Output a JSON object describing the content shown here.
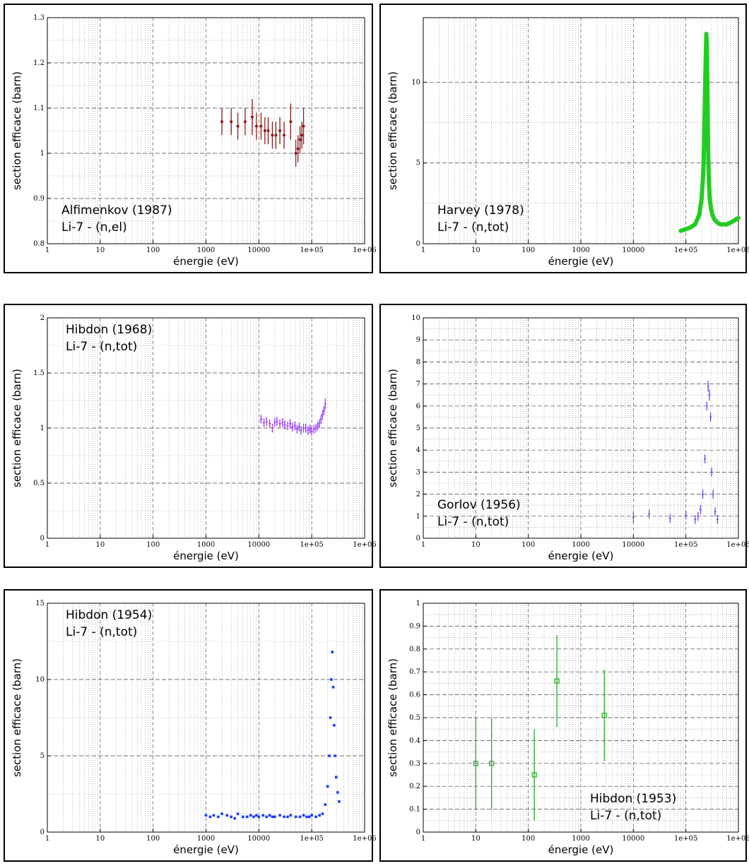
{
  "chart_data": [
    {
      "type": "scatter",
      "title": "",
      "xlabel": "énergie (eV)",
      "ylabel": "section efficace (barn)",
      "xscale": "log",
      "xlim": [
        1,
        1000000
      ],
      "ylim": [
        0.8,
        1.3
      ],
      "xticks": [
        "1",
        "10",
        "100",
        "1000",
        "10000",
        "1e+05",
        "1e+06"
      ],
      "yticks": [
        "0.8",
        "0.9",
        "1",
        "1.1",
        "1.2",
        "1.3"
      ],
      "annotation": [
        "Alfimenkov (1987)",
        "Li-7   -   (n,el)"
      ],
      "annotation_position": "bottom-left",
      "grid": true,
      "color": "#8b1a1a",
      "marker": "circle",
      "series": [
        {
          "x": [
            2000,
            3000,
            4000,
            5500,
            7500,
            9000,
            11000,
            13000,
            15000,
            18000,
            21000,
            25000,
            30000,
            40000,
            50000,
            55000,
            60000,
            65000,
            70000
          ],
          "y": [
            1.07,
            1.07,
            1.06,
            1.07,
            1.08,
            1.06,
            1.06,
            1.05,
            1.05,
            1.04,
            1.04,
            1.05,
            1.04,
            1.07,
            1.0,
            1.01,
            1.03,
            1.04,
            1.06
          ],
          "err": [
            0.03,
            0.03,
            0.03,
            0.03,
            0.04,
            0.03,
            0.03,
            0.03,
            0.03,
            0.03,
            0.03,
            0.03,
            0.03,
            0.04,
            0.03,
            0.03,
            0.03,
            0.03,
            0.04
          ]
        }
      ]
    },
    {
      "type": "scatter",
      "title": "",
      "xlabel": "énergie (eV)",
      "ylabel": "section efficace (barn)",
      "xscale": "log",
      "xlim": [
        1,
        1000000
      ],
      "ylim": [
        0,
        14
      ],
      "xticks": [
        "1",
        "10",
        "100",
        "1000",
        "10000",
        "1e+05",
        "1e+06"
      ],
      "yticks": [
        "0",
        "5",
        "10"
      ],
      "yticks_values": [
        0,
        5,
        10
      ],
      "annotation": [
        "Harvey (1978)",
        "Li-7   -   (n,tot)"
      ],
      "annotation_position": "bottom-left",
      "grid": true,
      "color": "#22cc22",
      "marker": "dense-line",
      "series": [
        {
          "x": [
            80000,
            100000,
            120000,
            150000,
            180000,
            200000,
            215000,
            225000,
            235000,
            245000,
            252000,
            258000,
            263000,
            268000,
            275000,
            285000,
            300000,
            320000,
            350000,
            400000,
            450000,
            500000,
            600000,
            700000,
            800000,
            900000,
            1000000
          ],
          "y": [
            0.8,
            0.9,
            1.0,
            1.2,
            1.8,
            2.8,
            4.5,
            7.0,
            10.5,
            13.0,
            12.0,
            9.0,
            6.5,
            5.0,
            3.8,
            2.8,
            2.2,
            1.8,
            1.5,
            1.3,
            1.2,
            1.2,
            1.2,
            1.3,
            1.4,
            1.5,
            1.6
          ],
          "err": []
        }
      ]
    },
    {
      "type": "scatter",
      "title": "",
      "xlabel": "énergie (eV)",
      "ylabel": "section efficace (barn)",
      "xscale": "log",
      "xlim": [
        1,
        1000000
      ],
      "ylim": [
        0,
        2
      ],
      "xticks": [
        "1",
        "10",
        "100",
        "1000",
        "10000",
        "1e+05",
        "1e+06"
      ],
      "yticks": [
        "0",
        "0.5",
        "1",
        "1.5",
        "2"
      ],
      "annotation": [
        "Hibdon (1968)",
        "Li-7   -   (n,tot)"
      ],
      "annotation_position": "top-left",
      "grid": true,
      "color": "#9933ff",
      "marker": "errbar",
      "series": [
        {
          "x": [
            11000,
            12500,
            14000,
            16000,
            18000,
            20000,
            22000,
            25000,
            28000,
            31000,
            35000,
            39000,
            43000,
            48000,
            53000,
            58000,
            63000,
            70000,
            77000,
            85000,
            93000,
            100000,
            110000,
            120000,
            130000,
            140000,
            150000,
            160000,
            170000,
            180000
          ],
          "y": [
            1.08,
            1.05,
            1.06,
            1.04,
            1.0,
            1.05,
            1.06,
            1.04,
            1.05,
            1.03,
            1.02,
            1.04,
            1.01,
            1.02,
            0.99,
            1.01,
            0.98,
            1.0,
            1.0,
            0.98,
            0.99,
            0.97,
            0.99,
            1.0,
            1.02,
            1.04,
            1.08,
            1.12,
            1.16,
            1.22
          ],
          "err": [
            0.04,
            0.04,
            0.04,
            0.04,
            0.04,
            0.04,
            0.04,
            0.04,
            0.04,
            0.04,
            0.04,
            0.04,
            0.04,
            0.04,
            0.04,
            0.04,
            0.04,
            0.04,
            0.04,
            0.04,
            0.04,
            0.04,
            0.04,
            0.04,
            0.04,
            0.04,
            0.04,
            0.04,
            0.04,
            0.05
          ]
        }
      ]
    },
    {
      "type": "scatter",
      "title": "",
      "xlabel": "énergie (eV)",
      "ylabel": "section efficace (barn)",
      "xscale": "log",
      "xlim": [
        1,
        1000000
      ],
      "ylim": [
        0,
        10
      ],
      "xticks": [
        "1",
        "10",
        "100",
        "1000",
        "10000",
        "1e+05",
        "1e+06"
      ],
      "yticks": [
        "0",
        "1",
        "2",
        "3",
        "4",
        "5",
        "6",
        "7",
        "8",
        "9",
        "10"
      ],
      "annotation": [
        "Gorlov (1956)",
        "Li-7   -   (n,tot)"
      ],
      "annotation_position": "bottom-left",
      "grid": true,
      "color": "#7744ee",
      "marker": "errbar",
      "series": [
        {
          "x": [
            10000,
            20000,
            50000,
            100000,
            150000,
            170000,
            190000,
            210000,
            230000,
            250000,
            265000,
            280000,
            295000,
            310000,
            330000,
            360000,
            400000
          ],
          "y": [
            0.95,
            1.1,
            0.9,
            1.05,
            0.85,
            1.0,
            1.3,
            2.0,
            3.6,
            6.0,
            6.9,
            6.5,
            5.5,
            3.0,
            2.0,
            1.2,
            0.85
          ],
          "err": [
            0.25,
            0.2,
            0.2,
            0.2,
            0.2,
            0.2,
            0.2,
            0.2,
            0.2,
            0.2,
            0.25,
            0.25,
            0.2,
            0.2,
            0.2,
            0.2,
            0.2
          ]
        }
      ]
    },
    {
      "type": "scatter",
      "title": "",
      "xlabel": "énergie (eV)",
      "ylabel": "section efficace (barn)",
      "xscale": "log",
      "xlim": [
        1,
        1000000
      ],
      "ylim": [
        0,
        15
      ],
      "xticks": [
        "1",
        "10",
        "100",
        "1000",
        "10000",
        "1e+05",
        "1e+06"
      ],
      "yticks": [
        "0",
        "5",
        "10",
        "15"
      ],
      "yticks_values": [
        0,
        5,
        10,
        15
      ],
      "annotation": [
        "Hibdon (1954)",
        "Li-7   -   (n,tot)"
      ],
      "annotation_position": "top-left",
      "grid": true,
      "color": "#1a3cff",
      "marker": "square",
      "series": [
        {
          "x": [
            1000,
            1200,
            1400,
            1700,
            2000,
            2500,
            3000,
            3500,
            4000,
            5000,
            6000,
            7000,
            8000,
            9000,
            10000,
            12000,
            14000,
            16000,
            18000,
            20000,
            25000,
            30000,
            35000,
            40000,
            50000,
            60000,
            70000,
            80000,
            90000,
            100000,
            120000,
            140000,
            160000,
            180000,
            200000,
            215000,
            225000,
            235000,
            245000,
            255000,
            265000,
            275000,
            290000,
            310000,
            330000
          ],
          "y": [
            1.1,
            1.0,
            1.1,
            1.0,
            1.2,
            1.1,
            1.0,
            0.9,
            1.2,
            1.0,
            1.0,
            1.1,
            1.0,
            1.1,
            1.0,
            1.1,
            1.0,
            1.1,
            1.0,
            1.0,
            1.1,
            1.0,
            1.0,
            1.1,
            1.0,
            1.0,
            1.1,
            1.0,
            1.0,
            1.1,
            1.0,
            1.1,
            1.2,
            1.8,
            3.0,
            5.0,
            7.5,
            10.0,
            11.8,
            9.5,
            7.0,
            5.0,
            3.6,
            2.6,
            2.0
          ],
          "err": []
        }
      ]
    },
    {
      "type": "scatter",
      "title": "",
      "xlabel": "énergie (eV)",
      "ylabel": "section efficace (barn)",
      "xscale": "log",
      "xlim": [
        1,
        1000000
      ],
      "ylim": [
        0,
        1
      ],
      "xticks": [
        "1",
        "10",
        "100",
        "1000",
        "10000",
        "1e+05",
        "1e+06"
      ],
      "yticks": [
        "0",
        "0.1",
        "0.2",
        "0.3",
        "0.4",
        "0.5",
        "0.6",
        "0.7",
        "0.8",
        "0.9",
        "1"
      ],
      "annotation": [
        "Hibdon (1953)",
        "Li-7   -   (n,tot)"
      ],
      "annotation_position": "bottom-right",
      "grid": true,
      "color": "#22aa22",
      "marker": "open-square",
      "series": [
        {
          "x": [
            10,
            20,
            130,
            350,
            2800
          ],
          "y": [
            0.3,
            0.3,
            0.25,
            0.66,
            0.51
          ],
          "err": [
            0.2,
            0.2,
            0.2,
            0.2,
            0.2
          ]
        }
      ]
    }
  ]
}
